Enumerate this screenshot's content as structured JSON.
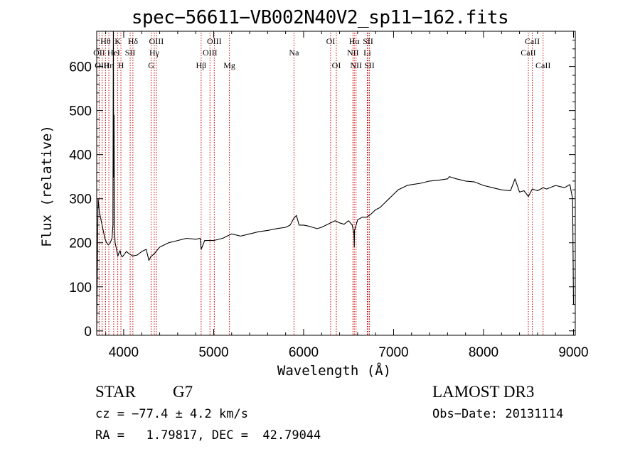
{
  "chart_data": {
    "type": "line",
    "title": "spec−56611−VB002N40V2_sp11−162.fits",
    "xlabel": "Wavelength (Å)",
    "ylabel": "Flux (relative)",
    "xlim": [
      3700,
      9020
    ],
    "ylim": [
      -10,
      680
    ],
    "xticks": [
      4000,
      5000,
      6000,
      7000,
      8000,
      9000
    ],
    "yticks": [
      0,
      100,
      200,
      300,
      400,
      500,
      600
    ],
    "grid": false,
    "line_color": "#000000",
    "marker_color": "#cc0000",
    "series": [
      {
        "name": "flux",
        "x": [
          3700,
          3715,
          3730,
          3750,
          3770,
          3790,
          3810,
          3830,
          3850,
          3870,
          3880,
          3885,
          3888,
          3893,
          3897,
          3905,
          3920,
          3935,
          3950,
          3960,
          3970,
          3985,
          4000,
          4030,
          4060,
          4100,
          4150,
          4200,
          4250,
          4280,
          4300,
          4340,
          4400,
          4500,
          4600,
          4700,
          4800,
          4850,
          4861,
          4900,
          5000,
          5100,
          5200,
          5300,
          5400,
          5500,
          5600,
          5700,
          5800,
          5850,
          5890,
          5920,
          5950,
          6000,
          6050,
          6100,
          6150,
          6200,
          6250,
          6300,
          6350,
          6400,
          6450,
          6500,
          6540,
          6560,
          6563,
          6566,
          6600,
          6650,
          6700,
          6750,
          6800,
          6850,
          6900,
          6950,
          7000,
          7050,
          7100,
          7150,
          7200,
          7300,
          7400,
          7500,
          7600,
          7620,
          7700,
          7800,
          7900,
          8000,
          8100,
          8200,
          8300,
          8350,
          8400,
          8450,
          8498,
          8542,
          8600,
          8662,
          8700,
          8800,
          8900,
          8960,
          8990,
          9000
        ],
        "y": [
          0,
          300,
          270,
          250,
          230,
          210,
          200,
          195,
          200,
          210,
          240,
          680,
          350,
          490,
          230,
          200,
          185,
          170,
          178,
          182,
          172,
          168,
          172,
          180,
          175,
          170,
          172,
          180,
          185,
          160,
          168,
          175,
          190,
          200,
          205,
          210,
          208,
          210,
          185,
          205,
          205,
          210,
          220,
          215,
          220,
          225,
          228,
          232,
          235,
          240,
          255,
          262,
          240,
          240,
          238,
          235,
          232,
          235,
          240,
          245,
          250,
          245,
          242,
          250,
          240,
          220,
          190,
          228,
          252,
          258,
          258,
          265,
          275,
          280,
          290,
          300,
          310,
          320,
          325,
          330,
          332,
          335,
          340,
          342,
          345,
          350,
          345,
          340,
          338,
          330,
          325,
          320,
          318,
          345,
          315,
          318,
          305,
          322,
          318,
          325,
          322,
          330,
          325,
          332,
          300,
          60
        ]
      }
    ],
    "lines": [
      {
        "label": "Hθ",
        "x": 3798,
        "row": 1
      },
      {
        "label": "OII",
        "x": 3727,
        "row": 2
      },
      {
        "label": "OIII",
        "x": 3760,
        "row": 3
      },
      {
        "label": "Hη",
        "x": 3835,
        "row": 3
      },
      {
        "label": "K",
        "x": 3934,
        "row": 1
      },
      {
        "label": "HeI",
        "x": 3889,
        "row": 2
      },
      {
        "label": "H",
        "x": 3969,
        "row": 3
      },
      {
        "label": "Hδ",
        "x": 4102,
        "row": 1
      },
      {
        "label": "SII",
        "x": 4072,
        "row": 2
      },
      {
        "label": "OIII",
        "x": 4363,
        "row": 1
      },
      {
        "label": "Hγ",
        "x": 4340,
        "row": 2
      },
      {
        "label": "G",
        "x": 4305,
        "row": 3
      },
      {
        "label": "Hβ",
        "x": 4861,
        "row": 3
      },
      {
        "label": "OIII",
        "x": 5007,
        "row": 1
      },
      {
        "label": "OIII",
        "x": 4959,
        "row": 2
      },
      {
        "label": "Mg",
        "x": 5175,
        "row": 3
      },
      {
        "label": "Na",
        "x": 5893,
        "row": 2
      },
      {
        "label": "OI",
        "x": 6300,
        "row": 1
      },
      {
        "label": "OI",
        "x": 6364,
        "row": 3
      },
      {
        "label": "Hα",
        "x": 6563,
        "row": 1
      },
      {
        "label": "NII",
        "x": 6548,
        "row": 2
      },
      {
        "label": "NII",
        "x": 6583,
        "row": 3
      },
      {
        "label": "SII",
        "x": 6716,
        "row": 1
      },
      {
        "label": "Li",
        "x": 6708,
        "row": 2
      },
      {
        "label": "SII",
        "x": 6731,
        "row": 3
      },
      {
        "label": "CaII",
        "x": 8542,
        "row": 1
      },
      {
        "label": "CaII",
        "x": 8498,
        "row": 2
      },
      {
        "label": "CaII",
        "x": 8662,
        "row": 3
      }
    ]
  },
  "info": {
    "object_class": "STAR",
    "subclass": "G7",
    "survey": "LAMOST DR3",
    "redshift_text": "cz = −77.4 ± 4.2 km/s",
    "obs_date_text": "Obs−Date: 20131114",
    "coords_text": "RA =   1.79817, DEC =  42.79044"
  }
}
